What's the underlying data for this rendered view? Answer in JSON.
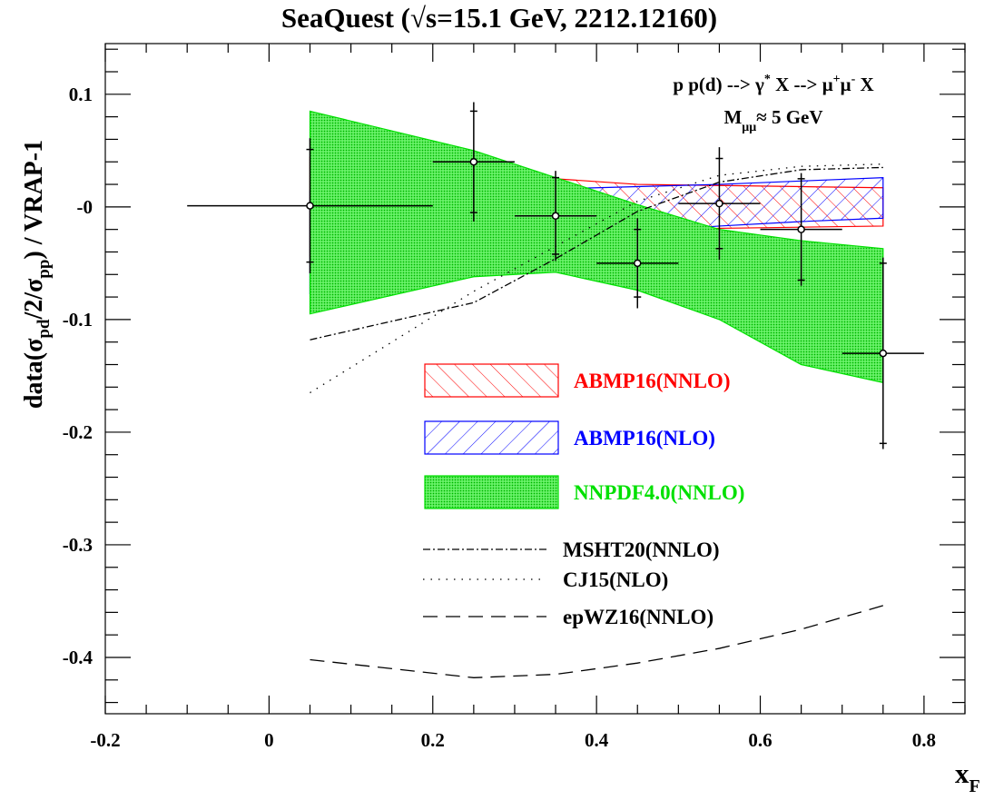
{
  "chart_data": {
    "type": "line",
    "title": "SeaQuest (√s=15.1 GeV, 2212.12160)",
    "xlabel": {
      "base": "x",
      "sub": "F"
    },
    "ylabel": {
      "p1": "data(σ",
      "s1": "pd",
      "p2": "/2/σ",
      "s2": "pp",
      "p3": ") / VRAP-1"
    },
    "xlim": [
      -0.2,
      0.85
    ],
    "ylim": [
      -0.45,
      0.145
    ],
    "x_ticks": [
      -0.2,
      0,
      0.2,
      0.4,
      0.6,
      0.8
    ],
    "x_tick_labels": [
      "-0.2",
      "0",
      "0.2",
      "0.4",
      "0.6",
      "0.8"
    ],
    "y_ticks": [
      -0.4,
      -0.3,
      -0.2,
      -0.1,
      0,
      0.1
    ],
    "y_tick_labels": [
      "-0.4",
      "-0.3",
      "-0.2",
      "-0.1",
      "-0",
      "0.1"
    ],
    "annotation": {
      "line1": {
        "t1": "p p(d) --> γ",
        "s1": "*",
        "t2": " X --> μ",
        "s2": "+",
        "t3": "μ",
        "s3": "-",
        "t4": " X"
      },
      "line2": {
        "t1": "M",
        "sub": "μμ",
        "t2": "≈ 5 GeV"
      }
    },
    "bands": [
      {
        "name": "ABMP16(NNLO)",
        "color": "#ff0000",
        "fill": "hatch-red",
        "x": [
          0.05,
          0.25,
          0.35,
          0.45,
          0.55,
          0.65,
          0.75
        ],
        "upper": [
          0.044,
          0.032,
          0.025,
          0.02,
          0.019,
          0.018,
          0.017
        ],
        "lower": [
          -0.044,
          -0.033,
          -0.026,
          -0.021,
          -0.019,
          -0.018,
          -0.017
        ]
      },
      {
        "name": "ABMP16(NLO)",
        "color": "#0000ff",
        "fill": "hatch-blue",
        "x": [
          0.05,
          0.25,
          0.35,
          0.45,
          0.55,
          0.65,
          0.75
        ],
        "upper": [
          0.014,
          0.015,
          0.016,
          0.018,
          0.02,
          0.023,
          0.026
        ],
        "lower": [
          -0.077,
          -0.044,
          -0.031,
          -0.022,
          -0.017,
          -0.013,
          -0.01
        ]
      },
      {
        "name": "NNPDF4.0(NNLO)",
        "color": "#00e000",
        "fill": "dots-green",
        "x": [
          0.05,
          0.25,
          0.35,
          0.45,
          0.55,
          0.65,
          0.75
        ],
        "upper": [
          0.085,
          0.05,
          0.026,
          0.002,
          -0.02,
          -0.03,
          -0.037
        ],
        "lower": [
          -0.095,
          -0.062,
          -0.058,
          -0.074,
          -0.1,
          -0.14,
          -0.156
        ]
      }
    ],
    "curves": [
      {
        "name": "MSHT20(NNLO)",
        "style": "dashdot",
        "x": [
          0.05,
          0.25,
          0.35,
          0.45,
          0.55,
          0.65,
          0.75
        ],
        "y": [
          -0.118,
          -0.085,
          -0.046,
          -0.004,
          0.022,
          0.033,
          0.035
        ]
      },
      {
        "name": "CJ15(NLO)",
        "style": "dotted",
        "x": [
          0.05,
          0.25,
          0.35,
          0.45,
          0.55,
          0.65,
          0.75
        ],
        "y": [
          -0.165,
          -0.075,
          -0.035,
          0.005,
          0.028,
          0.036,
          0.038
        ]
      },
      {
        "name": "epWZ16(NNLO)",
        "style": "dashed",
        "x": [
          0.05,
          0.25,
          0.35,
          0.45,
          0.55,
          0.65,
          0.75
        ],
        "y": [
          -0.402,
          -0.418,
          -0.415,
          -0.405,
          -0.392,
          -0.375,
          -0.354
        ]
      }
    ],
    "points": {
      "x": [
        0.05,
        0.25,
        0.35,
        0.45,
        0.55,
        0.65,
        0.75
      ],
      "y": [
        0.001,
        0.04,
        -0.008,
        -0.05,
        0.003,
        -0.02,
        -0.13
      ],
      "xerr": [
        0.15,
        0.05,
        0.05,
        0.05,
        0.05,
        0.05,
        0.05
      ],
      "yerr_stat": [
        0.05,
        0.045,
        0.034,
        0.03,
        0.04,
        0.045,
        0.08
      ],
      "yerr_tot": [
        0.06,
        0.053,
        0.04,
        0.04,
        0.05,
        0.05,
        0.085
      ]
    },
    "legend": [
      {
        "label": "ABMP16(NNLO)",
        "kind": "band",
        "ref": 0,
        "color": "#ff0000"
      },
      {
        "label": "ABMP16(NLO)",
        "kind": "band",
        "ref": 1,
        "color": "#0000ff"
      },
      {
        "label": "NNPDF4.0(NNLO)",
        "kind": "band",
        "ref": 2,
        "color": "#00e000"
      },
      {
        "label": "MSHT20(NNLO)",
        "kind": "line",
        "style": "dashdot",
        "color": "#000000"
      },
      {
        "label": "CJ15(NLO)",
        "kind": "line",
        "style": "dotted",
        "color": "#000000"
      },
      {
        "label": "epWZ16(NNLO)",
        "kind": "line",
        "style": "dashed",
        "color": "#000000"
      }
    ],
    "legend_position": "center",
    "grid": false
  }
}
